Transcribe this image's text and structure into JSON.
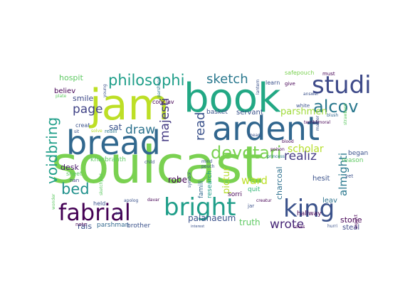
{
  "words": [
    {
      "text": "soulcast",
      "color": "#7ad151",
      "vertical": false
    },
    {
      "text": "book",
      "color": "#22a884",
      "vertical": false
    },
    {
      "text": "jam",
      "color": "#bddf26",
      "vertical": false
    },
    {
      "text": "ardent",
      "color": "#31668e",
      "vertical": false
    },
    {
      "text": "bread",
      "color": "#31688e",
      "vertical": false
    },
    {
      "text": "fabrial",
      "color": "#440154",
      "vertical": false
    },
    {
      "text": "bright",
      "color": "#1f9e89",
      "vertical": false
    },
    {
      "text": "king",
      "color": "#3b528b",
      "vertical": false
    },
    {
      "text": "studi",
      "color": "#3e4a89",
      "vertical": false
    },
    {
      "text": "alcov",
      "color": "#2a788e",
      "vertical": false
    },
    {
      "text": "devotari",
      "color": "#7ad151",
      "vertical": false
    },
    {
      "text": "philosophi",
      "color": "#1f9e89",
      "vertical": false
    },
    {
      "text": "voidbring",
      "color": "#1f9e89",
      "vertical": true
    },
    {
      "text": "bed",
      "color": "#21918c",
      "vertical": false
    },
    {
      "text": "sketch",
      "color": "#2a788e",
      "vertical": false
    },
    {
      "text": "page",
      "color": "#414487",
      "vertical": false
    },
    {
      "text": "draw",
      "color": "#2c728e",
      "vertical": false
    },
    {
      "text": "read",
      "color": "#3b528b",
      "vertical": true
    },
    {
      "text": "wrote",
      "color": "#482878",
      "vertical": false
    },
    {
      "text": "realiz",
      "color": "#443983",
      "vertical": false
    },
    {
      "text": "scholar",
      "color": "#b5de2b",
      "vertical": false
    },
    {
      "text": "parshmen",
      "color": "#a0da39",
      "vertical": false
    },
    {
      "text": "majesti",
      "color": "#443a83",
      "vertical": true
    },
    {
      "text": "pictur",
      "color": "#b5de2b",
      "vertical": true
    },
    {
      "text": "almighti",
      "color": "#2a788e",
      "vertical": true
    },
    {
      "text": "palanaeum",
      "color": "#3b528b",
      "vertical": false
    },
    {
      "text": "ward",
      "color": "#bddf26",
      "vertical": false
    },
    {
      "text": "truth",
      "color": "#5ec962",
      "vertical": false
    },
    {
      "text": "charcoal",
      "color": "#2d708e",
      "vertical": true
    },
    {
      "text": "hospit",
      "color": "#5ec962",
      "vertical": false
    },
    {
      "text": "believ",
      "color": "#440154",
      "vertical": false
    },
    {
      "text": "smile",
      "color": "#3e4a89",
      "vertical": false
    },
    {
      "text": "sat",
      "color": "#3b528b",
      "vertical": false
    },
    {
      "text": "robe",
      "color": "#440154",
      "vertical": false
    },
    {
      "text": "servant",
      "color": "#3b528b",
      "vertical": false
    },
    {
      "text": "basket",
      "color": "#3b528b",
      "vertical": false
    },
    {
      "text": "desk",
      "color": "#48186a",
      "vertical": false
    },
    {
      "text": "rais",
      "color": "#3b528b",
      "vertical": false
    },
    {
      "text": "leav",
      "color": "#2c728e",
      "vertical": false
    },
    {
      "text": "stone",
      "color": "#440154",
      "vertical": false
    },
    {
      "text": "steal",
      "color": "#3e4a89",
      "vertical": false
    },
    {
      "text": "began",
      "color": "#3b528b",
      "vertical": false
    },
    {
      "text": "reason",
      "color": "#5ec962",
      "vertical": false
    },
    {
      "text": "hesit",
      "color": "#3b528b",
      "vertical": false
    },
    {
      "text": "kharbranth",
      "color": "#5ec962",
      "vertical": false
    },
    {
      "text": "parshman",
      "color": "#31688e",
      "vertical": false
    },
    {
      "text": "brother",
      "color": "#3b528b",
      "vertical": false
    },
    {
      "text": "research",
      "color": "#1f9e89",
      "vertical": true
    },
    {
      "text": "famili",
      "color": "#31688e",
      "vertical": true
    },
    {
      "text": "sorri",
      "color": "#440154",
      "vertical": false
    },
    {
      "text": "quit",
      "color": "#35b779",
      "vertical": false
    },
    {
      "text": "hallway",
      "color": "#440154",
      "vertical": false
    },
    {
      "text": "learn",
      "color": "#3b528b",
      "vertical": false
    },
    {
      "text": "conclav",
      "color": "#440154",
      "vertical": false
    },
    {
      "text": "safepouch",
      "color": "#7ad151",
      "vertical": false
    },
    {
      "text": "must",
      "color": "#440154",
      "vertical": false
    },
    {
      "text": "give",
      "color": "#440154",
      "vertical": false
    },
    {
      "text": "nan",
      "color": "#414487",
      "vertical": false
    },
    {
      "text": "sheet",
      "color": "#5ec962",
      "vertical": false
    },
    {
      "text": "held",
      "color": "#3b528b",
      "vertical": false
    },
    {
      "text": "note",
      "color": "#440154",
      "vertical": false
    },
    {
      "text": "creat",
      "color": "#3b528b",
      "vertical": false
    },
    {
      "text": "white",
      "color": "#3b528b",
      "vertical": false
    },
    {
      "text": "blush",
      "color": "#31688e",
      "vertical": false
    },
    {
      "text": "blood",
      "color": "#440154",
      "vertical": false
    },
    {
      "text": "poison",
      "color": "#440154",
      "vertical": false
    },
    {
      "text": "princess",
      "color": "#2a788e",
      "vertical": false
    },
    {
      "text": "mind",
      "color": "#3b528b",
      "vertical": false
    },
    {
      "text": "pouch",
      "color": "#3b528b",
      "vertical": false
    },
    {
      "text": "mean",
      "color": "#3b528b",
      "vertical": false
    },
    {
      "text": "jar",
      "color": "#3b528b",
      "vertical": false
    },
    {
      "text": "yet",
      "color": "#3b528b",
      "vertical": false
    },
    {
      "text": "hurri",
      "color": "#3b528b",
      "vertical": false
    },
    {
      "text": "creatur",
      "color": "#440154",
      "vertical": false
    },
    {
      "text": "cours",
      "color": "#440154",
      "vertical": false
    },
    {
      "text": "apolog",
      "color": "#3b528b",
      "vertical": false
    },
    {
      "text": "davar",
      "color": "#440154",
      "vertical": false
    },
    {
      "text": "interest",
      "color": "#3b528b",
      "vertical": false
    },
    {
      "text": "symbol",
      "color": "#3b528b",
      "vertical": true
    },
    {
      "text": "child",
      "color": "#3b528b",
      "vertical": false
    },
    {
      "text": "answer",
      "color": "#3b528b",
      "vertical": false
    },
    {
      "text": "master",
      "color": "#3b528b",
      "vertical": true
    },
    {
      "text": "strawberri",
      "color": "#5ec962",
      "vertical": true
    },
    {
      "text": "lantern",
      "color": "#3b528b",
      "vertical": true
    },
    {
      "text": "terriblimoral",
      "color": "#440154",
      "vertical": false
    },
    {
      "text": "parshendi",
      "color": "#2a788e",
      "vertical": true
    },
    {
      "text": "young",
      "color": "#3b528b",
      "vertical": true
    },
    {
      "text": "solve",
      "color": "#b5de2b",
      "vertical": false
    },
    {
      "text": "realli",
      "color": "#2a788e",
      "vertical": false
    },
    {
      "text": "sit",
      "color": "#3b528b",
      "vertical": false
    },
    {
      "text": "plate",
      "color": "#5ec962",
      "vertical": false
    },
    {
      "text": "wonder",
      "color": "#5ec962",
      "vertical": true
    },
    {
      "text": "expect",
      "color": "#440154",
      "vertical": true
    },
    {
      "text": "sketchpad",
      "color": "#5ec962",
      "vertical": true
    },
    {
      "text": "art",
      "color": "#3b528b",
      "vertical": false
    }
  ]
}
